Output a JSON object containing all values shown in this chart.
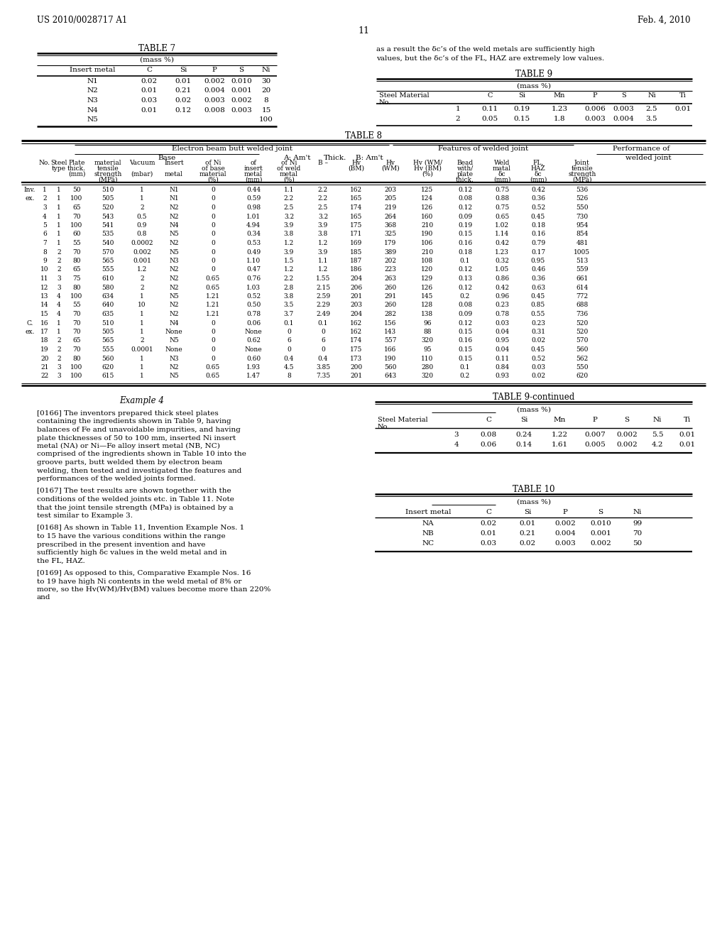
{
  "patent_number": "US 2010/0028717 A1",
  "date": "Feb. 4, 2010",
  "page_number": "11",
  "background_color": "#ffffff",
  "table7_title": "TABLE 7",
  "table7_subtitle": "(mass %)",
  "table7_headers": [
    "Insert metal",
    "C",
    "Si",
    "P",
    "S",
    "Ni"
  ],
  "table7_rows": [
    [
      "N1",
      "0.02",
      "0.01",
      "0.002",
      "0.010",
      "30"
    ],
    [
      "N2",
      "0.01",
      "0.21",
      "0.004",
      "0.001",
      "20"
    ],
    [
      "N3",
      "0.03",
      "0.02",
      "0.003",
      "0.002",
      "8"
    ],
    [
      "N4",
      "0.01",
      "0.12",
      "0.008",
      "0.003",
      "15"
    ],
    [
      "N5",
      "",
      "",
      "",
      "",
      "100"
    ]
  ],
  "right_text_line1": "as a result the δc’s of the weld metals are sufficiently high",
  "right_text_line2": "values, but the δc’s of the FL, HAZ are extremely low values.",
  "table9_title": "TABLE 9",
  "table9_subtitle": "(mass %)",
  "table9_rows": [
    [
      "1",
      "0.11",
      "0.19",
      "1.23",
      "0.006",
      "0.003",
      "2.5",
      "0.01"
    ],
    [
      "2",
      "0.05",
      "0.15",
      "1.8",
      "0.003",
      "0.004",
      "3.5",
      ""
    ]
  ],
  "table8_title": "TABLE 8",
  "table8_rows": [
    [
      "Inv.",
      "1",
      "1",
      "50",
      "510",
      "1",
      "N1",
      "0",
      "0.44",
      "1.1",
      "2.2",
      "162",
      "203",
      "125",
      "0.12",
      "0.75",
      "0.42",
      "536"
    ],
    [
      "ex.",
      "2",
      "1",
      "100",
      "505",
      "1",
      "N1",
      "0",
      "0.59",
      "2.2",
      "2.2",
      "165",
      "205",
      "124",
      "0.08",
      "0.88",
      "0.36",
      "526"
    ],
    [
      "",
      "3",
      "1",
      "65",
      "520",
      "2",
      "N2",
      "0",
      "0.98",
      "2.5",
      "2.5",
      "174",
      "219",
      "126",
      "0.12",
      "0.75",
      "0.52",
      "550"
    ],
    [
      "",
      "4",
      "1",
      "70",
      "543",
      "0.5",
      "N2",
      "0",
      "1.01",
      "3.2",
      "3.2",
      "165",
      "264",
      "160",
      "0.09",
      "0.65",
      "0.45",
      "730"
    ],
    [
      "",
      "5",
      "1",
      "100",
      "541",
      "0.9",
      "N4",
      "0",
      "4.94",
      "3.9",
      "3.9",
      "175",
      "368",
      "210",
      "0.19",
      "1.02",
      "0.18",
      "954"
    ],
    [
      "",
      "6",
      "1",
      "60",
      "535",
      "0.8",
      "N5",
      "0",
      "0.34",
      "3.8",
      "3.8",
      "171",
      "325",
      "190",
      "0.15",
      "1.14",
      "0.16",
      "854"
    ],
    [
      "",
      "7",
      "1",
      "55",
      "540",
      "0.0002",
      "N2",
      "0",
      "0.53",
      "1.2",
      "1.2",
      "169",
      "179",
      "106",
      "0.16",
      "0.42",
      "0.79",
      "481"
    ],
    [
      "",
      "8",
      "2",
      "70",
      "570",
      "0.002",
      "N5",
      "0",
      "0.49",
      "3.9",
      "3.9",
      "185",
      "389",
      "210",
      "0.18",
      "1.23",
      "0.17",
      "1005"
    ],
    [
      "",
      "9",
      "2",
      "80",
      "565",
      "0.001",
      "N3",
      "0",
      "1.10",
      "1.5",
      "1.1",
      "187",
      "202",
      "108",
      "0.1",
      "0.32",
      "0.95",
      "513"
    ],
    [
      "",
      "10",
      "2",
      "65",
      "555",
      "1.2",
      "N2",
      "0",
      "0.47",
      "1.2",
      "1.2",
      "186",
      "223",
      "120",
      "0.12",
      "1.05",
      "0.46",
      "559"
    ],
    [
      "",
      "11",
      "3",
      "75",
      "610",
      "2",
      "N2",
      "0.65",
      "0.76",
      "2.2",
      "1.55",
      "204",
      "263",
      "129",
      "0.13",
      "0.86",
      "0.36",
      "661"
    ],
    [
      "",
      "12",
      "3",
      "80",
      "580",
      "2",
      "N2",
      "0.65",
      "1.03",
      "2.8",
      "2.15",
      "206",
      "260",
      "126",
      "0.12",
      "0.42",
      "0.63",
      "614"
    ],
    [
      "",
      "13",
      "4",
      "100",
      "634",
      "1",
      "N5",
      "1.21",
      "0.52",
      "3.8",
      "2.59",
      "201",
      "291",
      "145",
      "0.2",
      "0.96",
      "0.45",
      "772"
    ],
    [
      "",
      "14",
      "4",
      "55",
      "640",
      "10",
      "N2",
      "1.21",
      "0.50",
      "3.5",
      "2.29",
      "203",
      "260",
      "128",
      "0.08",
      "0.23",
      "0.85",
      "688"
    ],
    [
      "",
      "15",
      "4",
      "70",
      "635",
      "1",
      "N2",
      "1.21",
      "0.78",
      "3.7",
      "2.49",
      "204",
      "282",
      "138",
      "0.09",
      "0.78",
      "0.55",
      "736"
    ],
    [
      "C.",
      "16",
      "1",
      "70",
      "510",
      "1",
      "N4",
      "0",
      "0.06",
      "0.1",
      "0.1",
      "162",
      "156",
      "96",
      "0.12",
      "0.03",
      "0.23",
      "520"
    ],
    [
      "ex.",
      "17",
      "1",
      "70",
      "505",
      "1",
      "None",
      "0",
      "None",
      "0",
      "0",
      "162",
      "143",
      "88",
      "0.15",
      "0.04",
      "0.31",
      "520"
    ],
    [
      "",
      "18",
      "2",
      "65",
      "565",
      "2",
      "N5",
      "0",
      "0.62",
      "6",
      "6",
      "174",
      "557",
      "320",
      "0.16",
      "0.95",
      "0.02",
      "570"
    ],
    [
      "",
      "19",
      "2",
      "70",
      "555",
      "0.0001",
      "None",
      "0",
      "None",
      "0",
      "0",
      "175",
      "166",
      "95",
      "0.15",
      "0.04",
      "0.45",
      "560"
    ],
    [
      "",
      "20",
      "2",
      "80",
      "560",
      "1",
      "N3",
      "0",
      "0.60",
      "0.4",
      "0.4",
      "173",
      "190",
      "110",
      "0.15",
      "0.11",
      "0.52",
      "562"
    ],
    [
      "",
      "21",
      "3",
      "100",
      "620",
      "1",
      "N2",
      "0.65",
      "1.93",
      "4.5",
      "3.85",
      "200",
      "560",
      "280",
      "0.1",
      "0.84",
      "0.03",
      "550"
    ],
    [
      "",
      "22",
      "3",
      "100",
      "615",
      "1",
      "N5",
      "0.65",
      "1.47",
      "8",
      "7.35",
      "201",
      "643",
      "320",
      "0.2",
      "0.93",
      "0.02",
      "620"
    ]
  ],
  "example4_title": "Example 4",
  "para0166": "[0166] The inventors prepared thick steel plates containing the ingredients shown in Table 9, having balances of Fe and unavoidable impurities, and having plate thicknesses of 50 to 100 mm, inserted Ni insert metal (NA) or Ni—Fe alloy insert metal (NB, NC) comprised of the ingredients shown in Table 10 into the groove parts, butt welded them by electron beam welding, then tested and investigated the features and performances of the welded joints formed.",
  "para0167": "[0167] The test results are shown together with the conditions of the welded joints etc. in Table 11. Note that the joint tensile strength (MPa) is obtained by a test similar to Example 3.",
  "para0168": "[0168] As shown in Table 11, Invention Example Nos. 1 to 15 have the various conditions within the range prescribed in the present invention and have sufficiently high δc values in the weld metal and in the FL, HAZ.",
  "para0169": "[0169] As opposed to this, Comparative Example Nos. 16 to 19 have high Ni contents in the weld metal of 8% or more, so the Hv(WM)/Hv(BM) values become more than 220% and",
  "table9cont_title": "TABLE 9-continued",
  "table9cont_subtitle": "(mass %)",
  "table9cont_rows": [
    [
      "3",
      "0.08",
      "0.24",
      "1.22",
      "0.007",
      "0.002",
      "5.5",
      "0.01"
    ],
    [
      "4",
      "0.06",
      "0.14",
      "1.61",
      "0.005",
      "0.002",
      "4.2",
      "0.01"
    ]
  ],
  "table10_title": "TABLE 10",
  "table10_subtitle": "(mass %)",
  "table10_headers": [
    "Insert metal",
    "C",
    "Si",
    "P",
    "S",
    "Ni"
  ],
  "table10_rows": [
    [
      "NA",
      "0.02",
      "0.01",
      "0.002",
      "0.010",
      "99"
    ],
    [
      "NB",
      "0.01",
      "0.21",
      "0.004",
      "0.001",
      "70"
    ],
    [
      "NC",
      "0.03",
      "0.02",
      "0.003",
      "0.002",
      "50"
    ]
  ]
}
